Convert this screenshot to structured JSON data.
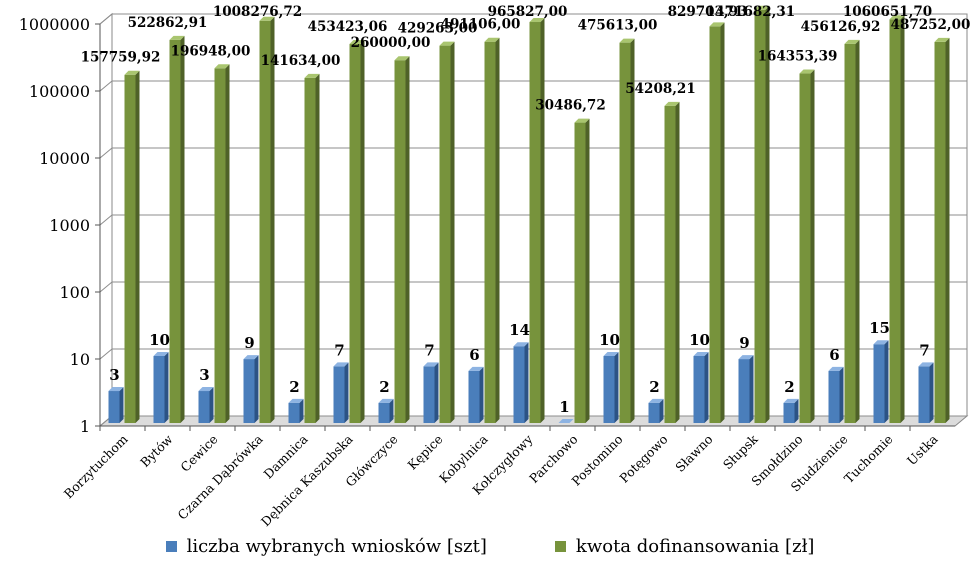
{
  "chart_data": {
    "type": "bar",
    "title": "",
    "xlabel": "",
    "ylabel": "",
    "yscale": "log",
    "ylim": [
      1,
      1000000
    ],
    "yticks": [
      {
        "value": 1,
        "label": "1"
      },
      {
        "value": 10,
        "label": "10"
      },
      {
        "value": 100,
        "label": "100"
      },
      {
        "value": 1000,
        "label": "1000"
      },
      {
        "value": 10000,
        "label": "10000"
      },
      {
        "value": 100000,
        "label": "100000"
      },
      {
        "value": 1000000,
        "label": "1000000"
      }
    ],
    "grid": true,
    "legend_position": "bottom",
    "categories": [
      "Borzytuchom",
      "Bytów",
      "Cewice",
      "Czarna Dąbrówka",
      "Damnica",
      "Dębnica Kaszubska",
      "Główczyce",
      "Kępice",
      "Kobylnica",
      "Kołczygłowy",
      "Parchowo",
      "Postomino",
      "Potęgowo",
      "Sławno",
      "Słupsk",
      "Smołdzino",
      "Studzienice",
      "Tuchomie",
      "Ustka"
    ],
    "series": [
      {
        "name": "liczba wybranych wniosków [szt]",
        "color": "#4a7ebb",
        "values": [
          3,
          10,
          3,
          9,
          2,
          7,
          2,
          7,
          6,
          14,
          1,
          10,
          2,
          10,
          9,
          2,
          6,
          15,
          7
        ],
        "labels": [
          "3",
          "10",
          "3",
          "9",
          "2",
          "7",
          "2",
          "7",
          "6",
          "14",
          "1",
          "10",
          "2",
          "10",
          "9",
          "2",
          "6",
          "15",
          "7"
        ]
      },
      {
        "name": "kwota dofinansowania [zł]",
        "color": "#77933c",
        "values": [
          157759.92,
          522862.91,
          196948.0,
          1008276.72,
          141634.0,
          453423.06,
          260000.0,
          429263.0,
          491106.0,
          965827.0,
          30486.72,
          475613.0,
          54208.21,
          829703.93,
          1471682.31,
          164353.39,
          456126.92,
          1060651.7,
          487252.0
        ],
        "labels": [
          "157759,92",
          "522862,91",
          "196948,00",
          "1008276,72",
          "141634,00",
          "453423,06",
          "260000,00",
          "429263,00",
          "491106,00",
          "965827,00",
          "30486,72",
          "475613,00",
          "54208,21",
          "829703,93",
          "1471682,31",
          "164353,39",
          "456126,92",
          "1060651,70",
          "487252,00"
        ]
      }
    ]
  }
}
